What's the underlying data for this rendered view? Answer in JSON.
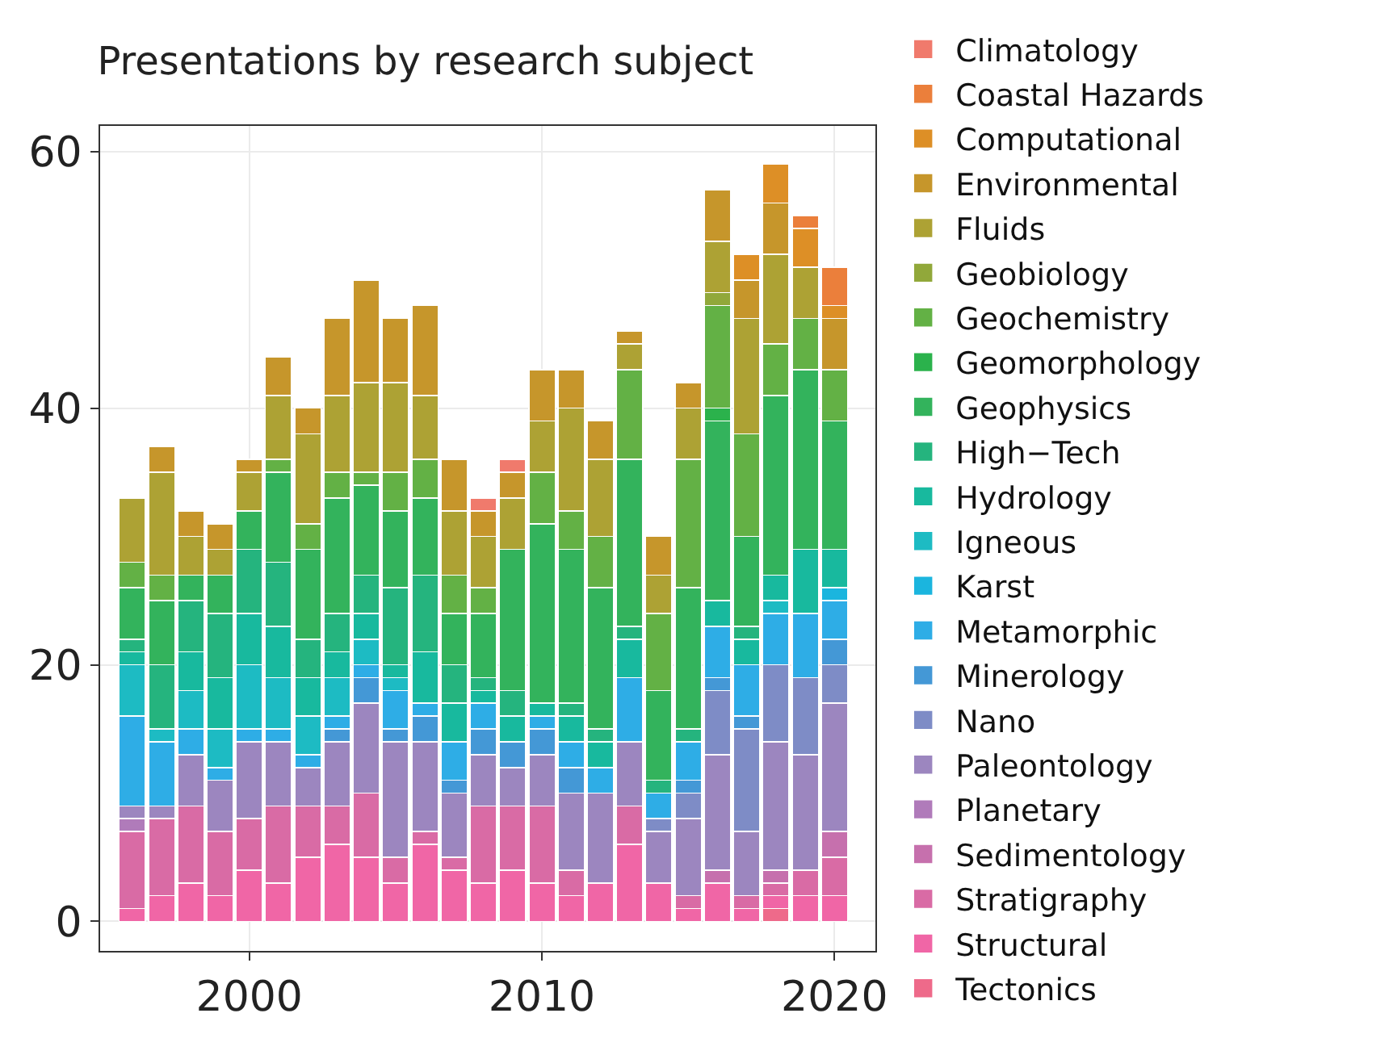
{
  "chart_data": {
    "type": "bar",
    "stacked": true,
    "title": "Presentations by research subject",
    "x": [
      1996,
      1997,
      1998,
      1999,
      2000,
      2001,
      2002,
      2003,
      2004,
      2005,
      2006,
      2007,
      2008,
      2009,
      2010,
      2011,
      2012,
      2013,
      2014,
      2015,
      2016,
      2017,
      2018,
      2019,
      2020
    ],
    "xlim": [
      1994.9,
      2021.4
    ],
    "xticks": [
      2000,
      2010,
      2020
    ],
    "ylim": [
      -2.3,
      62
    ],
    "yticks": [
      0,
      20,
      40,
      60
    ],
    "grid": true,
    "legend": "right",
    "series": [
      {
        "name": "Tectonics",
        "color": "#ee6a8a",
        "values": [
          null,
          null,
          null,
          null,
          null,
          null,
          null,
          null,
          null,
          null,
          null,
          null,
          null,
          null,
          null,
          null,
          null,
          null,
          null,
          null,
          null,
          null,
          1,
          null,
          null
        ]
      },
      {
        "name": "Structural",
        "color": "#f066a6",
        "values": [
          1,
          2,
          3,
          2,
          4,
          3,
          5,
          6,
          5,
          3,
          6,
          4,
          3,
          4,
          3,
          2,
          3,
          6,
          3,
          1,
          3,
          1,
          1,
          2,
          2
        ]
      },
      {
        "name": "Stratigraphy",
        "color": "#d96ba5",
        "values": [
          6,
          6,
          6,
          5,
          4,
          6,
          4,
          3,
          5,
          2,
          1,
          1,
          6,
          5,
          6,
          2,
          null,
          3,
          null,
          1,
          null,
          1,
          1,
          2,
          3
        ]
      },
      {
        "name": "Sedimentology",
        "color": "#c670ad",
        "values": [
          null,
          null,
          null,
          null,
          null,
          null,
          null,
          null,
          null,
          null,
          null,
          null,
          null,
          null,
          null,
          null,
          null,
          null,
          null,
          null,
          1,
          null,
          1,
          null,
          2
        ]
      },
      {
        "name": "Planetary",
        "color": "#b07bba",
        "values": [
          1,
          null,
          null,
          null,
          null,
          null,
          null,
          null,
          null,
          null,
          null,
          null,
          null,
          null,
          null,
          null,
          null,
          null,
          null,
          null,
          null,
          null,
          null,
          null,
          null
        ]
      },
      {
        "name": "Paleontology",
        "color": "#9c86bf",
        "values": [
          1,
          1,
          4,
          4,
          6,
          5,
          3,
          5,
          7,
          9,
          7,
          5,
          4,
          3,
          4,
          6,
          7,
          5,
          4,
          6,
          9,
          5,
          10,
          9,
          10
        ]
      },
      {
        "name": "Nano",
        "color": "#7e8cc6",
        "values": [
          null,
          null,
          null,
          null,
          null,
          null,
          null,
          null,
          null,
          null,
          null,
          null,
          null,
          null,
          null,
          null,
          null,
          null,
          1,
          2,
          5,
          8,
          6,
          6,
          3
        ]
      },
      {
        "name": "Minerology",
        "color": "#4498d6",
        "values": [
          null,
          null,
          null,
          null,
          null,
          null,
          null,
          1,
          2,
          1,
          2,
          1,
          2,
          2,
          2,
          2,
          null,
          null,
          null,
          1,
          1,
          1,
          null,
          null,
          2
        ]
      },
      {
        "name": "Metamorphic",
        "color": "#2eade6",
        "values": [
          7,
          5,
          2,
          1,
          1,
          1,
          1,
          1,
          1,
          3,
          1,
          3,
          2,
          null,
          1,
          2,
          2,
          5,
          2,
          3,
          4,
          4,
          4,
          5,
          3
        ]
      },
      {
        "name": "Karst",
        "color": "#1bb5de",
        "values": [
          null,
          null,
          null,
          null,
          null,
          null,
          null,
          null,
          null,
          null,
          null,
          null,
          null,
          null,
          null,
          null,
          null,
          null,
          null,
          null,
          null,
          null,
          null,
          null,
          1
        ]
      },
      {
        "name": "Igneous",
        "color": "#1dbbc3",
        "values": [
          4,
          1,
          3,
          3,
          5,
          4,
          3,
          3,
          2,
          1,
          null,
          null,
          null,
          null,
          null,
          null,
          null,
          null,
          null,
          null,
          null,
          null,
          1,
          null,
          null
        ]
      },
      {
        "name": "Hydrology",
        "color": "#18b99e",
        "values": [
          1,
          null,
          3,
          4,
          4,
          4,
          3,
          2,
          2,
          1,
          4,
          3,
          1,
          2,
          1,
          2,
          2,
          3,
          null,
          null,
          2,
          2,
          2,
          5,
          3
        ]
      },
      {
        "name": "High−Tech",
        "color": "#25b47e",
        "values": [
          1,
          5,
          4,
          5,
          5,
          5,
          3,
          3,
          3,
          6,
          6,
          3,
          1,
          2,
          null,
          1,
          1,
          1,
          1,
          1,
          null,
          1,
          null,
          null,
          null
        ]
      },
      {
        "name": "Geophysics",
        "color": "#33b35c",
        "values": [
          4,
          5,
          2,
          3,
          3,
          7,
          7,
          9,
          7,
          6,
          6,
          4,
          5,
          11,
          14,
          12,
          11,
          13,
          7,
          11,
          14,
          7,
          14,
          14,
          10
        ]
      },
      {
        "name": "Geomorphology",
        "color": "#2bb24c",
        "values": [
          null,
          null,
          null,
          null,
          null,
          null,
          null,
          null,
          null,
          null,
          null,
          null,
          null,
          null,
          null,
          null,
          null,
          null,
          null,
          null,
          1,
          null,
          null,
          null,
          null
        ]
      },
      {
        "name": "Geochemistry",
        "color": "#63b145",
        "values": [
          2,
          2,
          null,
          null,
          null,
          1,
          2,
          2,
          1,
          3,
          3,
          3,
          2,
          null,
          4,
          3,
          4,
          7,
          6,
          10,
          8,
          8,
          4,
          4,
          4
        ]
      },
      {
        "name": "Geobiology",
        "color": "#91a83a",
        "values": [
          null,
          null,
          null,
          null,
          null,
          null,
          null,
          null,
          null,
          null,
          null,
          null,
          null,
          null,
          null,
          null,
          null,
          null,
          null,
          null,
          1,
          null,
          null,
          null,
          null
        ]
      },
      {
        "name": "Fluids",
        "color": "#ada234",
        "values": [
          5,
          8,
          3,
          2,
          3,
          5,
          7,
          6,
          7,
          7,
          5,
          5,
          4,
          4,
          4,
          8,
          6,
          2,
          3,
          4,
          4,
          9,
          7,
          4,
          null
        ]
      },
      {
        "name": "Environmental",
        "color": "#c6962b",
        "values": [
          null,
          2,
          2,
          2,
          1,
          3,
          2,
          6,
          8,
          5,
          7,
          4,
          2,
          2,
          4,
          3,
          3,
          1,
          3,
          2,
          4,
          3,
          4,
          null,
          4
        ]
      },
      {
        "name": "Computational",
        "color": "#dd8f26",
        "values": [
          null,
          null,
          null,
          null,
          null,
          null,
          null,
          null,
          null,
          null,
          null,
          null,
          null,
          null,
          null,
          null,
          null,
          null,
          null,
          null,
          null,
          2,
          3,
          3,
          1
        ]
      },
      {
        "name": "Coastal Hazards",
        "color": "#eb7f3b",
        "values": [
          null,
          null,
          null,
          null,
          null,
          null,
          null,
          null,
          null,
          null,
          null,
          null,
          null,
          null,
          null,
          null,
          null,
          null,
          null,
          null,
          null,
          null,
          null,
          1,
          3
        ]
      },
      {
        "name": "Climatology",
        "color": "#f07a6c",
        "values": [
          null,
          null,
          null,
          null,
          null,
          null,
          null,
          null,
          null,
          null,
          null,
          null,
          1,
          1,
          null,
          null,
          null,
          null,
          null,
          null,
          null,
          null,
          null,
          null,
          null
        ]
      }
    ]
  }
}
